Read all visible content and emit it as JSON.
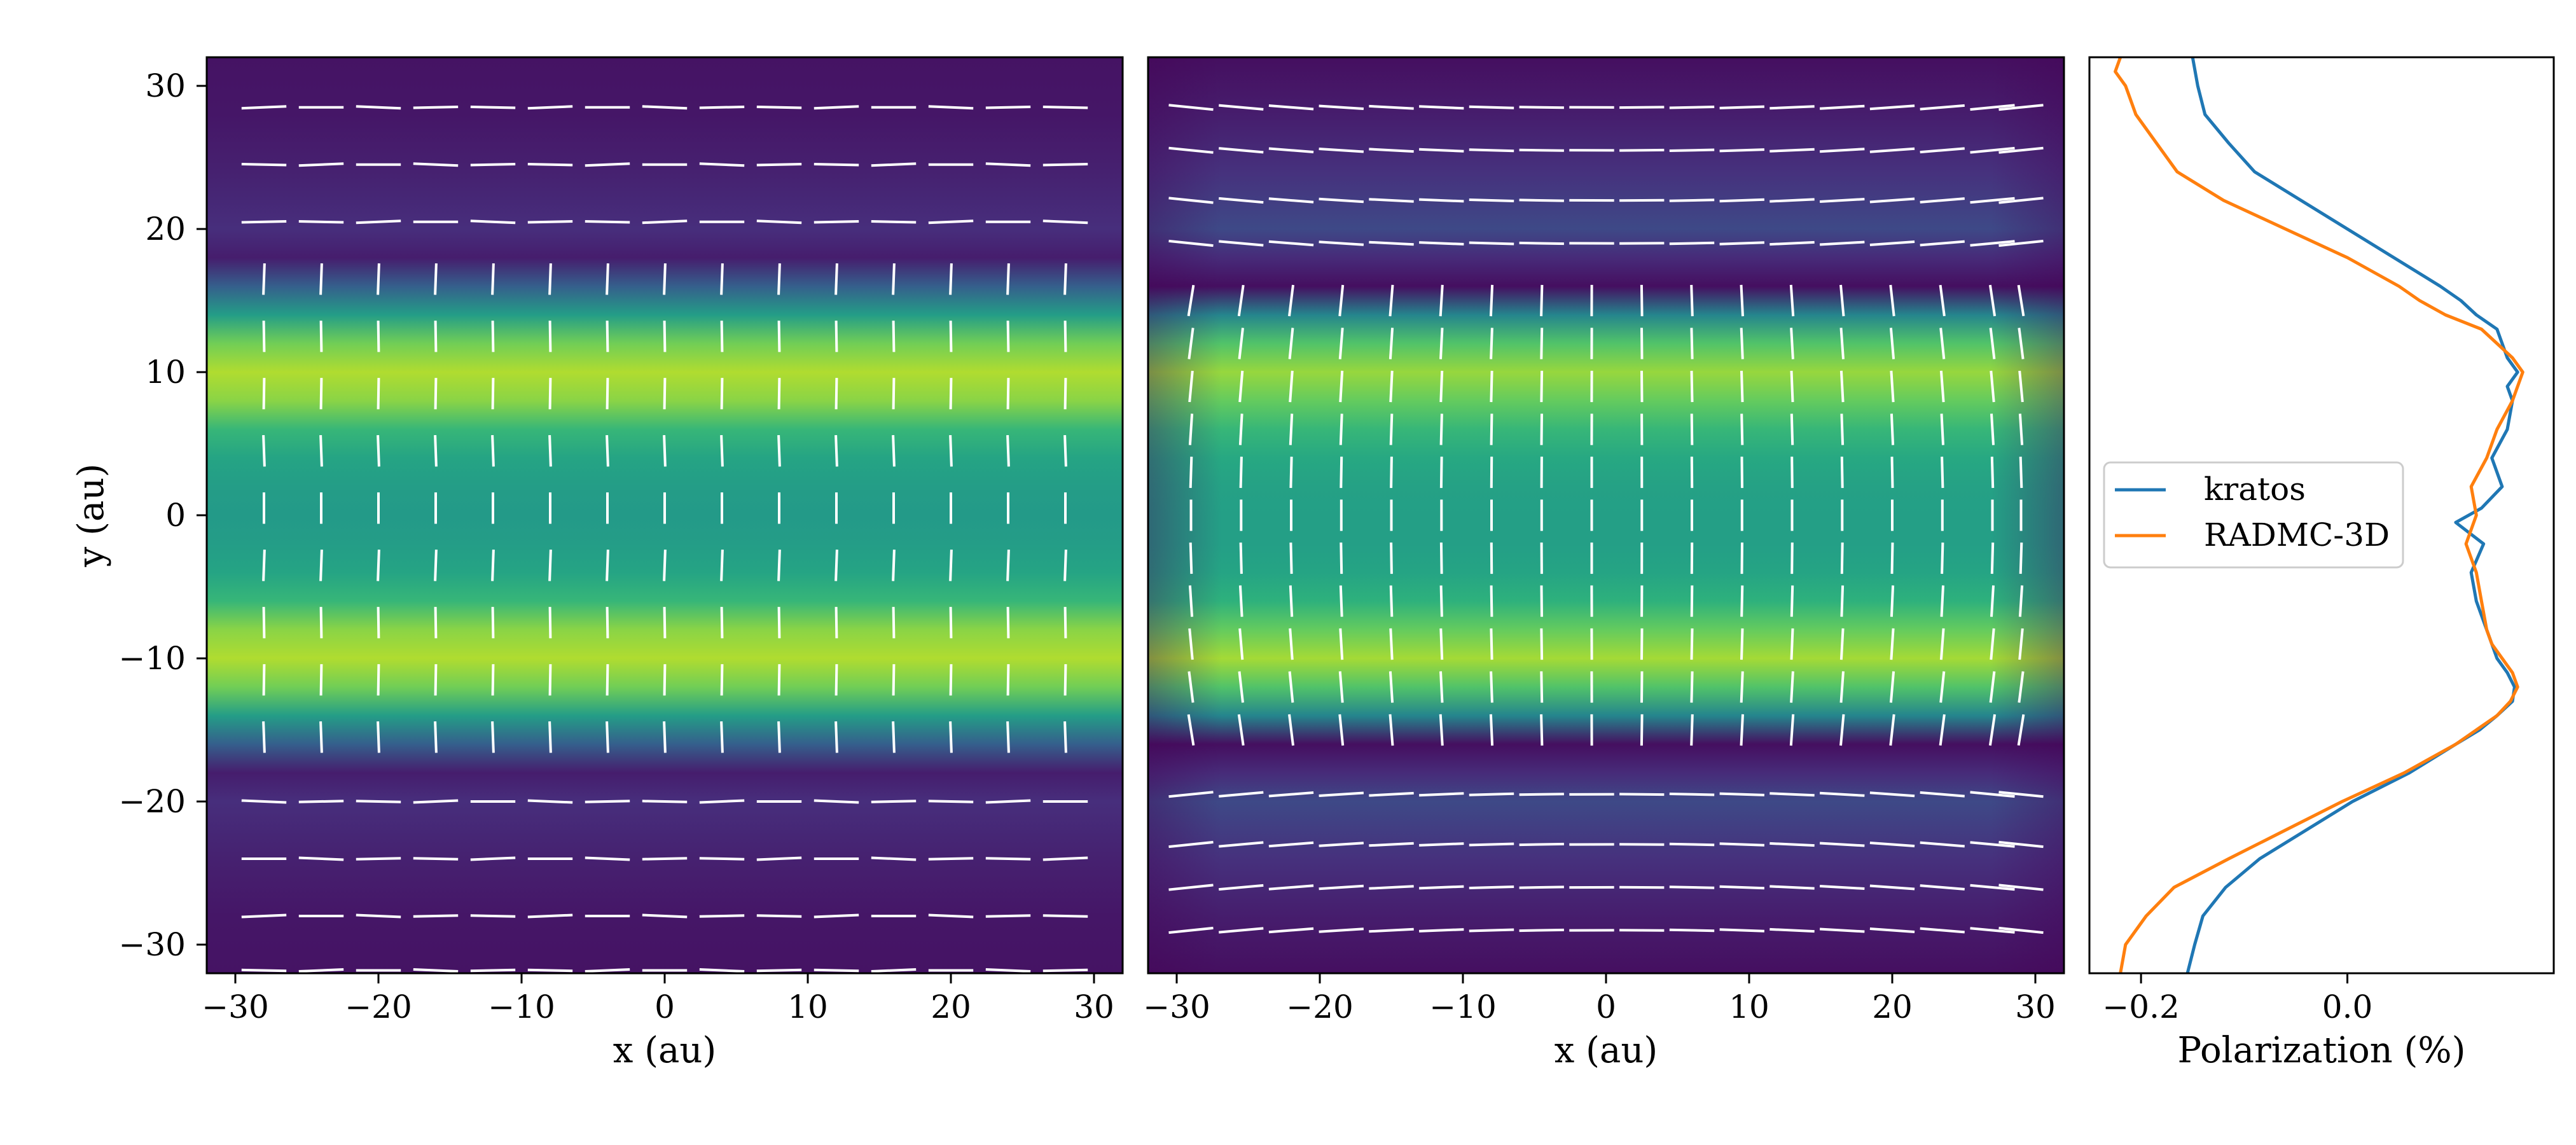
{
  "colors": {
    "kratos": "#1f77b4",
    "radmc": "#ff7f0e",
    "vectors": "#ffffff",
    "colormap": [
      "#440154",
      "#472d7b",
      "#3b528b",
      "#2c728e",
      "#21918c",
      "#28ae80",
      "#5ec962",
      "#addc30",
      "#fde725"
    ]
  },
  "chart_data": [
    {
      "type": "heatmap",
      "panel": "left",
      "xlabel": "x (au)",
      "ylabel": "y (au)",
      "xlim": [
        -32,
        32
      ],
      "ylim": [
        -32,
        32
      ],
      "xticks": [
        "−30",
        "−20",
        "−10",
        "0",
        "10",
        "20",
        "30"
      ],
      "yticks": [
        "30",
        "20",
        "10",
        "0",
        "−10",
        "−20",
        "−30"
      ],
      "xtick_values": [
        -30,
        -20,
        -10,
        0,
        10,
        20,
        30
      ],
      "ytick_values": [
        30,
        20,
        10,
        0,
        -10,
        -20,
        -30
      ],
      "colormap": "viridis",
      "intensity_profile_y": [
        -32,
        -28,
        -24,
        -20,
        -18,
        -16,
        -14,
        -12,
        -10,
        -8,
        -6,
        -4,
        -2,
        0,
        2,
        4,
        6,
        8,
        10,
        12,
        14,
        16,
        18,
        20,
        24,
        28,
        32
      ],
      "intensity_profile_v": [
        0.05,
        0.06,
        0.09,
        0.13,
        0.08,
        0.3,
        0.55,
        0.78,
        0.88,
        0.82,
        0.66,
        0.58,
        0.55,
        0.54,
        0.55,
        0.58,
        0.66,
        0.82,
        0.88,
        0.78,
        0.55,
        0.3,
        0.08,
        0.13,
        0.09,
        0.06,
        0.05
      ],
      "vector_rows_horizontal": [
        28.5,
        24.5,
        20.5,
        -20,
        -24,
        -28,
        -31.8
      ],
      "vector_rows_vertical": [
        16.5,
        12.5,
        8.5,
        4.5,
        0.5,
        -3.5,
        -7.5,
        -11.5,
        -15.5
      ],
      "vector_cols": [
        -28,
        -24,
        -20,
        -16,
        -12,
        -8,
        -4,
        0,
        4,
        8,
        12,
        16,
        20,
        24,
        28
      ]
    },
    {
      "type": "heatmap",
      "panel": "middle",
      "xlabel": "x (au)",
      "xlim": [
        -32,
        32
      ],
      "ylim": [
        -32,
        32
      ],
      "xticks": [
        "−30",
        "−20",
        "−10",
        "0",
        "10",
        "20",
        "30"
      ],
      "xtick_values": [
        -30,
        -20,
        -10,
        0,
        10,
        20,
        30
      ],
      "colormap": "viridis",
      "intensity_profile_y": [
        -32,
        -28,
        -24,
        -20,
        -18,
        -16,
        -14,
        -12,
        -10,
        -8,
        -6,
        -4,
        -2,
        0,
        2,
        4,
        6,
        8,
        10,
        12,
        14,
        16,
        18,
        20,
        24,
        28,
        32
      ],
      "intensity_profile_v": [
        0.04,
        0.08,
        0.14,
        0.22,
        0.12,
        0.04,
        0.45,
        0.72,
        0.86,
        0.76,
        0.64,
        0.58,
        0.56,
        0.56,
        0.57,
        0.6,
        0.66,
        0.76,
        0.84,
        0.72,
        0.45,
        0.04,
        0.12,
        0.22,
        0.14,
        0.08,
        0.04
      ],
      "vector_rows_horizontal": [
        28.5,
        25.5,
        22,
        19,
        -19.5,
        -23,
        -26,
        -29
      ],
      "vector_rows_vertical": [
        15,
        12,
        9,
        6,
        3,
        0,
        -3,
        -6,
        -9,
        -12,
        -15
      ],
      "vector_cols": [
        -29,
        -25.5,
        -22,
        -18.5,
        -15,
        -11.5,
        -8,
        -4.5,
        -1,
        2.5,
        6,
        9.5,
        13,
        16.5,
        20,
        23.5,
        27,
        29
      ]
    },
    {
      "type": "line",
      "panel": "right",
      "xlabel": "Polarization (%)",
      "xlim": [
        -0.25,
        0.2
      ],
      "ylim": [
        -32,
        32
      ],
      "xticks": [
        "−0.2",
        "0.0"
      ],
      "xtick_values": [
        -0.2,
        0.0
      ],
      "legend_position": "center-left",
      "series": [
        {
          "name": "kratos",
          "y": [
            -32,
            -30,
            -28,
            -26,
            -24,
            -22,
            -20,
            -18,
            -16,
            -15,
            -14,
            -13,
            -12,
            -11,
            -10,
            -9,
            -8,
            -6,
            -4,
            -2,
            -0.5,
            0.5,
            2,
            4,
            6,
            8,
            9,
            10,
            11,
            12,
            13,
            14,
            15,
            16,
            18,
            20,
            22,
            24,
            26,
            28,
            30,
            32
          ],
          "values": [
            -0.155,
            -0.148,
            -0.14,
            -0.118,
            -0.085,
            -0.04,
            0.005,
            0.06,
            0.105,
            0.128,
            0.145,
            0.16,
            0.162,
            0.155,
            0.145,
            0.14,
            0.135,
            0.125,
            0.12,
            0.132,
            0.105,
            0.13,
            0.15,
            0.14,
            0.155,
            0.16,
            0.155,
            0.165,
            0.155,
            0.15,
            0.145,
            0.125,
            0.11,
            0.09,
            0.045,
            0.0,
            -0.045,
            -0.09,
            -0.115,
            -0.138,
            -0.145,
            -0.15
          ]
        },
        {
          "name": "RADMC-3D",
          "y": [
            -32,
            -30,
            -28,
            -26,
            -24,
            -22,
            -20,
            -18,
            -16,
            -15,
            -14,
            -13,
            -12,
            -11,
            -10,
            -9,
            -8,
            -6,
            -4,
            -2,
            0,
            2,
            4,
            6,
            8,
            9,
            10,
            11,
            12,
            13,
            14,
            15,
            16,
            18,
            20,
            22,
            24,
            26,
            28,
            30,
            31,
            32
          ],
          "values": [
            -0.22,
            -0.215,
            -0.195,
            -0.168,
            -0.115,
            -0.06,
            -0.005,
            0.055,
            0.105,
            0.125,
            0.145,
            0.158,
            0.165,
            0.16,
            0.15,
            0.14,
            0.135,
            0.13,
            0.125,
            0.115,
            0.125,
            0.12,
            0.135,
            0.145,
            0.16,
            0.165,
            0.17,
            0.16,
            0.145,
            0.13,
            0.095,
            0.07,
            0.05,
            0.0,
            -0.06,
            -0.12,
            -0.165,
            -0.185,
            -0.205,
            -0.215,
            -0.225,
            -0.22
          ]
        }
      ]
    }
  ]
}
